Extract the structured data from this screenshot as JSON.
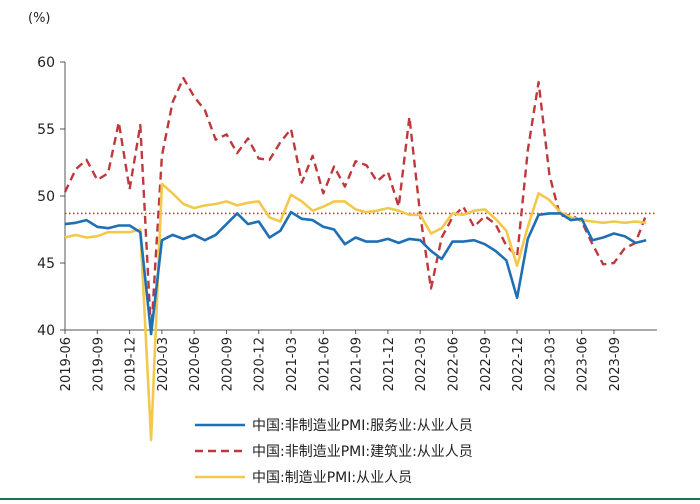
{
  "chart_data": {
    "type": "line",
    "unit_label": "(%)",
    "ylim": [
      40,
      60
    ],
    "yticks": [
      40,
      45,
      50,
      55,
      60
    ],
    "xlim": [
      "2019-06",
      "2024-01"
    ],
    "xticks": [
      "2019-06",
      "2019-09",
      "2019-12",
      "2020-03",
      "2020-06",
      "2020-09",
      "2020-12",
      "2021-03",
      "2021-06",
      "2021-09",
      "2021-12",
      "2022-03",
      "2022-06",
      "2022-09",
      "2022-12",
      "2023-03",
      "2023-06",
      "2023-09"
    ],
    "grid": false,
    "legend_position": "bottom",
    "reference_line": {
      "value": 48.7,
      "color": "#e0302a",
      "style": "dotted"
    },
    "x": [
      "2019-06",
      "2019-07",
      "2019-08",
      "2019-09",
      "2019-10",
      "2019-11",
      "2019-12",
      "2020-01",
      "2020-02",
      "2020-03",
      "2020-04",
      "2020-05",
      "2020-06",
      "2020-07",
      "2020-08",
      "2020-09",
      "2020-10",
      "2020-11",
      "2020-12",
      "2021-01",
      "2021-02",
      "2021-03",
      "2021-04",
      "2021-05",
      "2021-06",
      "2021-07",
      "2021-08",
      "2021-09",
      "2021-10",
      "2021-11",
      "2021-12",
      "2022-01",
      "2022-02",
      "2022-03",
      "2022-04",
      "2022-05",
      "2022-06",
      "2022-07",
      "2022-08",
      "2022-09",
      "2022-10",
      "2022-11",
      "2022-12",
      "2023-01",
      "2023-02",
      "2023-03",
      "2023-04",
      "2023-05",
      "2023-06",
      "2023-07",
      "2023-08",
      "2023-09",
      "2023-10",
      "2023-11",
      "2023-12"
    ],
    "series": [
      {
        "name": "中国:非制造业PMI:服务业:从业人员",
        "color": "#1f6fb5",
        "dash": "solid",
        "values": [
          47.9,
          48.0,
          48.2,
          47.7,
          47.6,
          47.8,
          47.8,
          47.3,
          39.7,
          46.7,
          47.1,
          46.8,
          47.1,
          46.7,
          47.1,
          47.9,
          48.7,
          47.9,
          48.1,
          46.9,
          47.4,
          48.8,
          48.3,
          48.2,
          47.7,
          47.5,
          46.4,
          46.9,
          46.6,
          46.6,
          46.8,
          46.5,
          46.8,
          46.7,
          45.9,
          45.3,
          46.6,
          46.6,
          46.7,
          46.4,
          45.9,
          45.2,
          42.4,
          46.8,
          48.6,
          48.7,
          48.7,
          48.2,
          48.3,
          46.7,
          46.9,
          47.2,
          47.0,
          46.5,
          46.7
        ]
      },
      {
        "name": "中国:非制造业PMI:建筑业:从业人员",
        "color": "#c0383c",
        "dash": "dashed",
        "values": [
          50.3,
          52.0,
          52.7,
          51.2,
          51.7,
          55.5,
          50.5,
          55.3,
          39.7,
          53.0,
          57.0,
          58.8,
          57.4,
          56.4,
          54.2,
          54.6,
          53.2,
          54.3,
          52.8,
          52.7,
          54.0,
          55.0,
          51.0,
          53.0,
          50.2,
          52.2,
          50.7,
          52.6,
          52.3,
          51.1,
          51.8,
          49.2,
          55.9,
          48.6,
          43.1,
          46.9,
          48.4,
          49.2,
          47.7,
          48.5,
          47.9,
          46.3,
          45.5,
          53.4,
          58.5,
          51.6,
          48.5,
          48.6,
          48.1,
          46.4,
          44.9,
          45.0,
          46.1,
          46.5,
          48.6
        ]
      },
      {
        "name": "中国:制造业PMI:从业人员",
        "color": "#f2c94c",
        "dash": "solid",
        "values": [
          46.9,
          47.1,
          46.9,
          47.0,
          47.3,
          47.3,
          47.3,
          47.5,
          31.8,
          50.9,
          50.2,
          49.4,
          49.1,
          49.3,
          49.4,
          49.6,
          49.3,
          49.5,
          49.6,
          48.4,
          48.1,
          50.1,
          49.6,
          48.9,
          49.2,
          49.6,
          49.6,
          49.0,
          48.8,
          48.9,
          49.1,
          48.9,
          48.6,
          48.6,
          47.2,
          47.6,
          48.7,
          48.6,
          48.9,
          49.0,
          48.3,
          47.4,
          44.8,
          47.7,
          50.2,
          49.7,
          48.8,
          48.4,
          48.2,
          48.1,
          48.0,
          48.1,
          48.0,
          48.1,
          48.0
        ]
      }
    ],
    "legend": [
      "中国:非制造业PMI:服务业:从业人员",
      "中国:非制造业PMI:建筑业:从业人员",
      "中国:制造业PMI:从业人员"
    ]
  }
}
